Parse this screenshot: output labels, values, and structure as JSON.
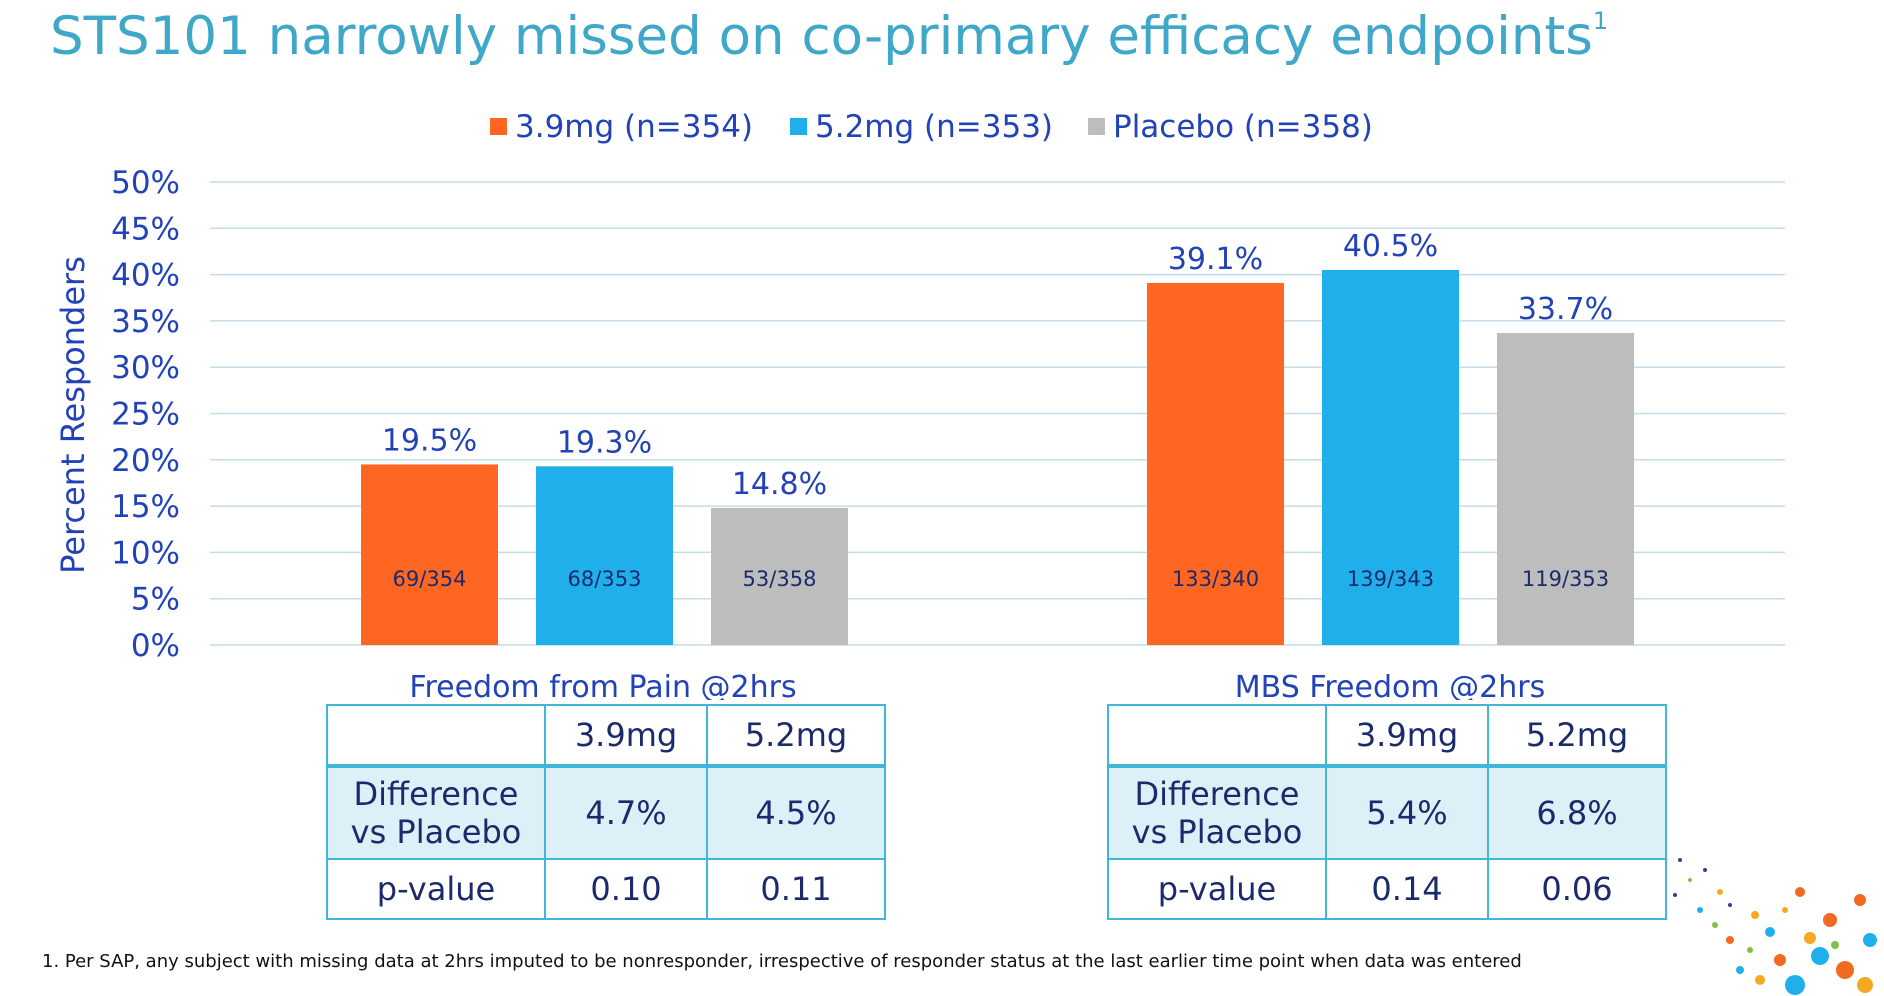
{
  "title": "STS101 narrowly missed on co-primary efficacy endpoints",
  "title_footnote_mark": "1",
  "colors": {
    "dose_3_9": "#FF6621",
    "dose_5_2": "#1FB0EC",
    "placebo": "#BDBDBD",
    "title": "#3FA7C8",
    "axis_text": "#2243B8",
    "grid": "#C6DCEA"
  },
  "chart_data": {
    "type": "bar",
    "ylabel": "Percent Responders",
    "ylim": [
      0,
      50
    ],
    "yticks": [
      "0%",
      "5%",
      "10%",
      "15%",
      "20%",
      "25%",
      "30%",
      "35%",
      "40%",
      "45%",
      "50%"
    ],
    "grid": true,
    "legend_position": "top",
    "categories": [
      "Freedom from Pain @2hrs",
      "MBS Freedom @2hrs"
    ],
    "series": [
      {
        "name": "3.9mg (n=354)",
        "values": [
          19.5,
          39.1
        ],
        "labels": [
          "19.5%",
          "39.1%"
        ],
        "counts": [
          "69/354",
          "133/340"
        ]
      },
      {
        "name": "5.2mg (n=353)",
        "values": [
          19.3,
          40.5
        ],
        "labels": [
          "19.3%",
          "40.5%"
        ],
        "counts": [
          "68/353",
          "139/343"
        ]
      },
      {
        "name": "Placebo (n=358)",
        "values": [
          14.8,
          33.7
        ],
        "labels": [
          "14.8%",
          "33.7%"
        ],
        "counts": [
          "53/358",
          "119/353"
        ]
      }
    ]
  },
  "tables": {
    "left": {
      "header": [
        "",
        "3.9mg",
        "5.2mg"
      ],
      "diff_label_1": "Difference",
      "diff_label_2": "vs Placebo",
      "diff_values": [
        "4.7%",
        "4.5%"
      ],
      "p_label": "p-value",
      "p_values": [
        "0.10",
        "0.11"
      ]
    },
    "right": {
      "header": [
        "",
        "3.9mg",
        "5.2mg"
      ],
      "diff_label_1": "Difference",
      "diff_label_2": "vs Placebo",
      "diff_values": [
        "5.4%",
        "6.8%"
      ],
      "p_label": "p-value",
      "p_values": [
        "0.14",
        "0.06"
      ]
    }
  },
  "footnote": "1.  Per SAP, any subject with missing data at 2hrs imputed to be nonresponder, irrespective of responder status at the last earlier time point when data was entered"
}
